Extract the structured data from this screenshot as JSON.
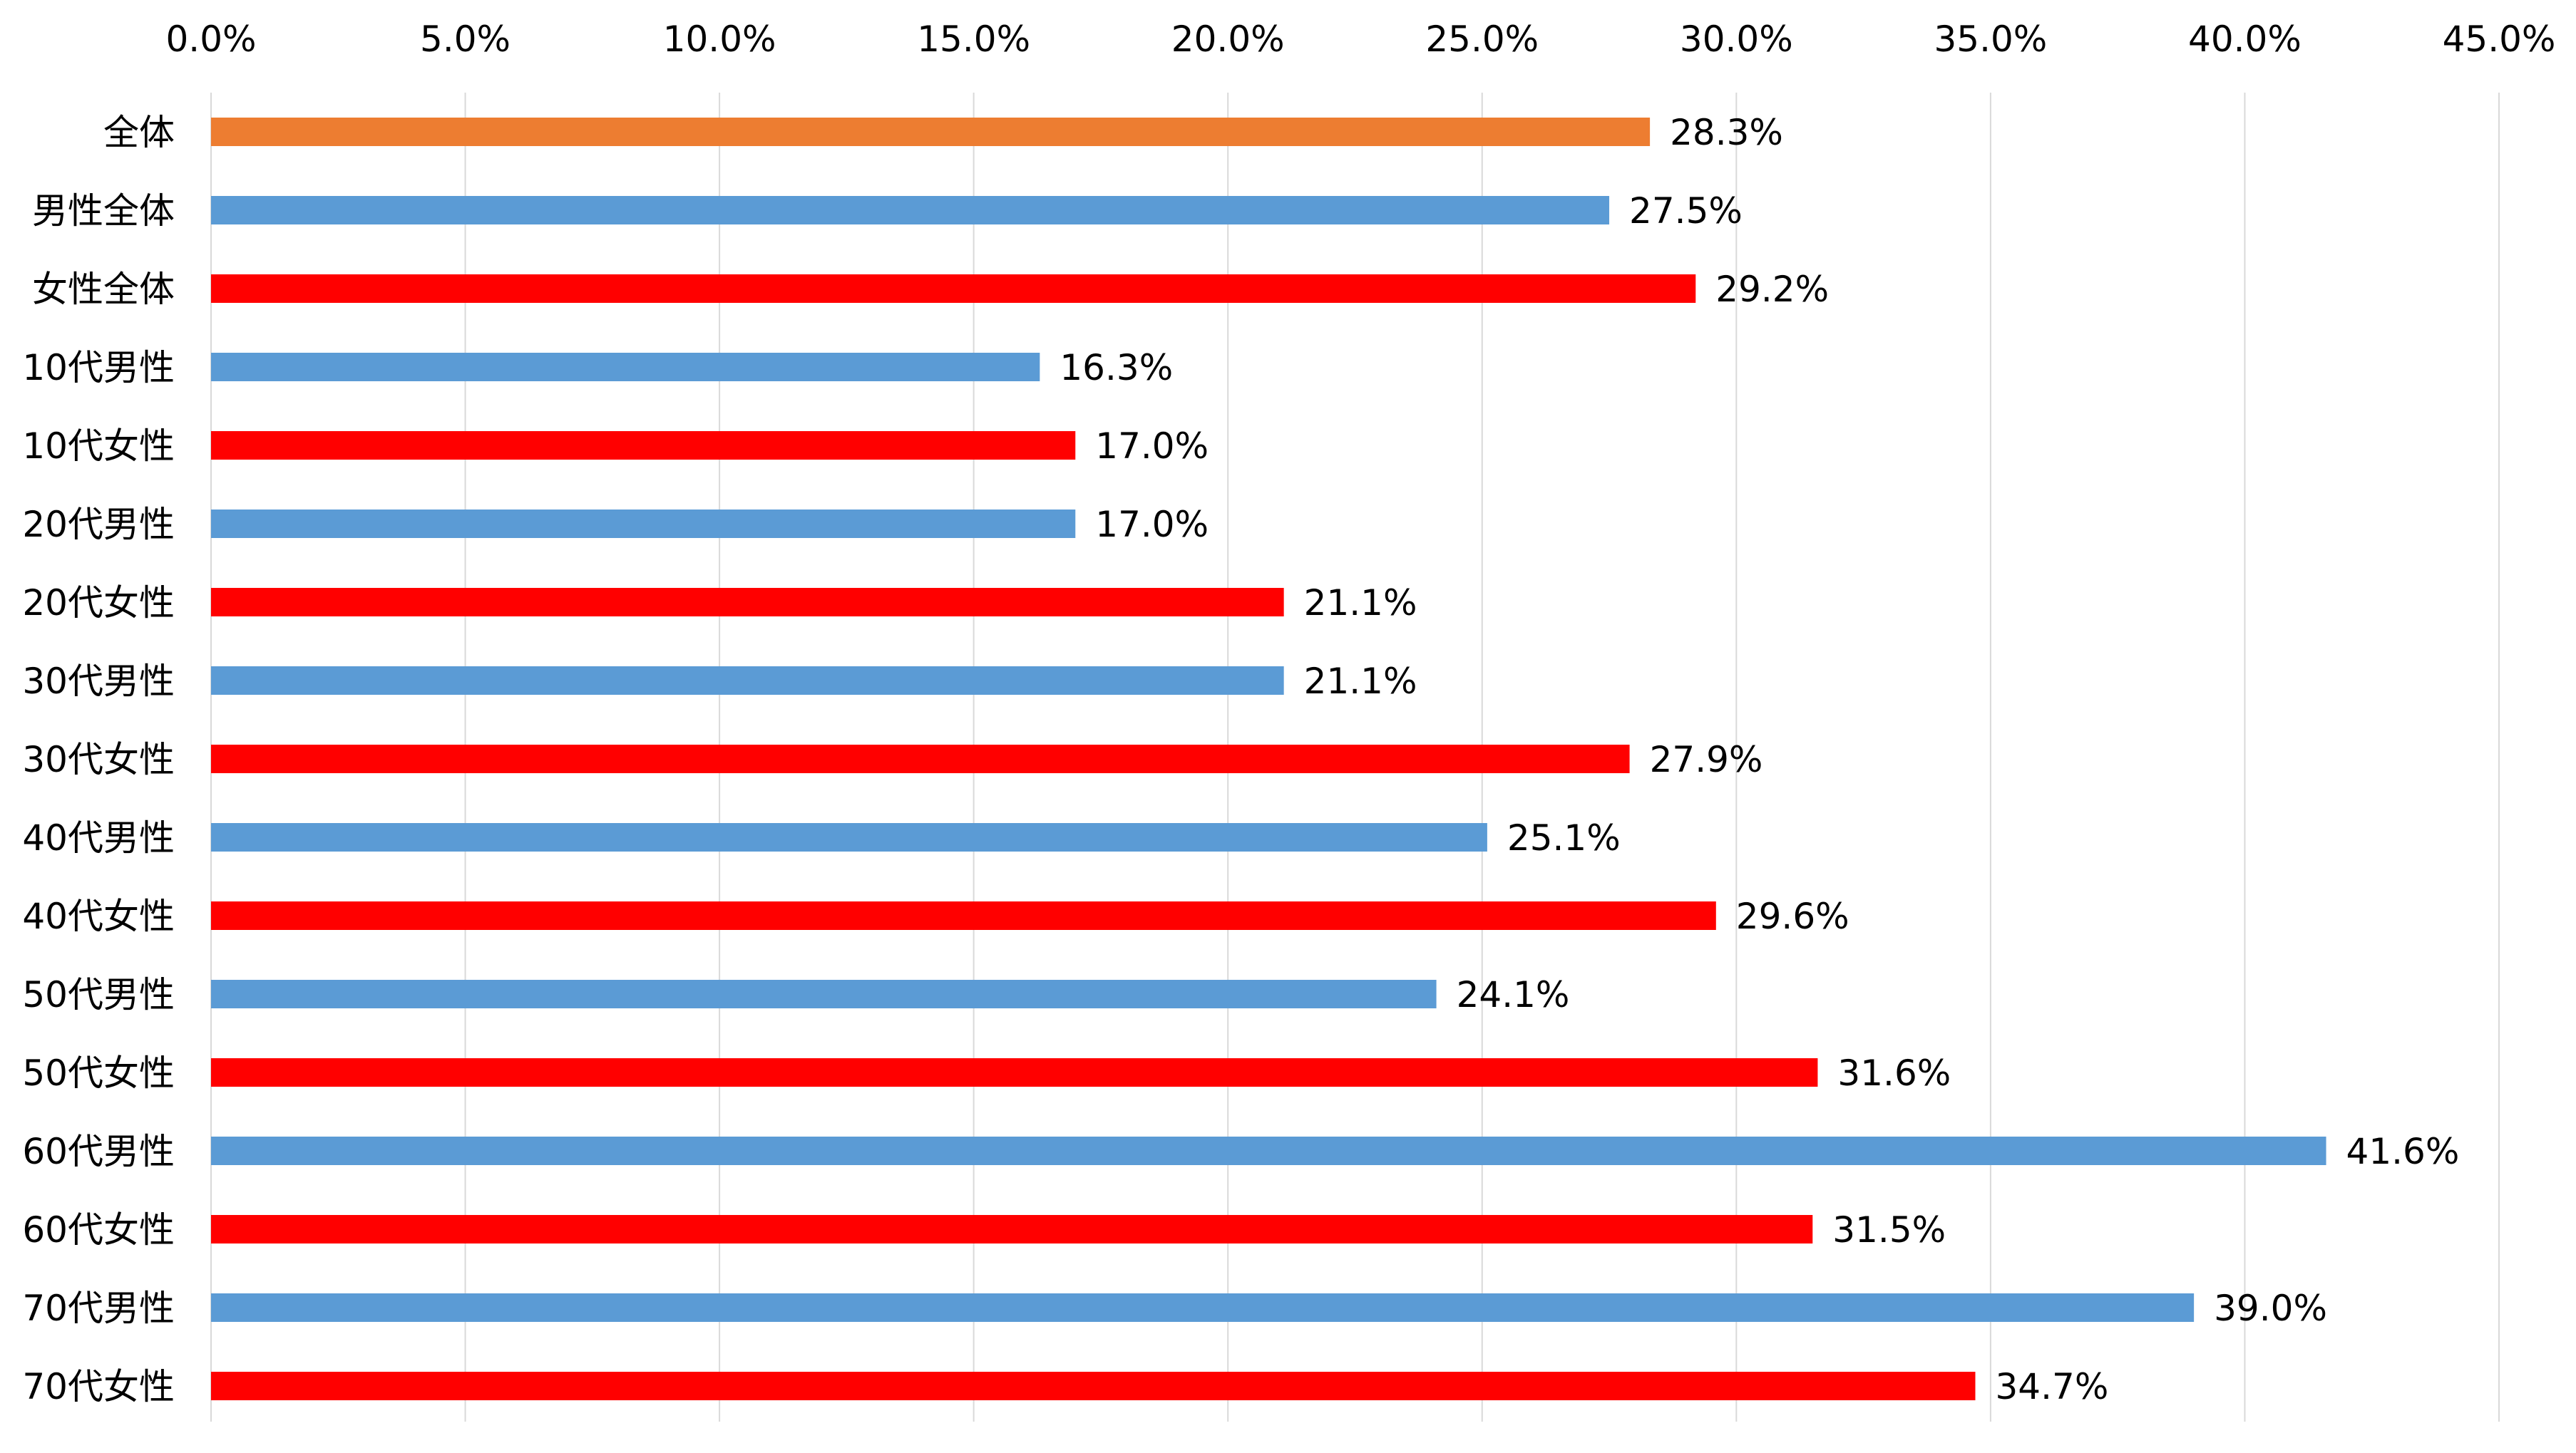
{
  "chart_data": {
    "type": "bar",
    "orientation": "horizontal",
    "title": "",
    "xlabel": "",
    "ylabel": "",
    "xlim": [
      0,
      45
    ],
    "x_ticks": [
      0,
      5,
      10,
      15,
      20,
      25,
      30,
      35,
      40,
      45
    ],
    "x_tick_labels": [
      "0.0%",
      "5.0%",
      "10.0%",
      "15.0%",
      "20.0%",
      "25.0%",
      "30.0%",
      "35.0%",
      "40.0%",
      "45.0%"
    ],
    "x_axis_position": "top",
    "grid": "vertical",
    "legend": "none",
    "categories": [
      "全体",
      "男性全体",
      "女性全体",
      "10代男性",
      "10代女性",
      "20代男性",
      "20代女性",
      "30代男性",
      "30代女性",
      "40代男性",
      "40代女性",
      "50代男性",
      "50代女性",
      "60代男性",
      "60代女性",
      "70代男性",
      "70代女性"
    ],
    "values": [
      28.3,
      27.5,
      29.2,
      16.3,
      17.0,
      17.0,
      21.1,
      21.1,
      27.9,
      25.1,
      29.6,
      24.1,
      31.6,
      41.6,
      31.5,
      39.0,
      34.7
    ],
    "value_labels": [
      "28.3%",
      "27.5%",
      "29.2%",
      "16.3%",
      "17.0%",
      "17.0%",
      "21.1%",
      "21.1%",
      "27.9%",
      "25.1%",
      "29.6%",
      "24.1%",
      "31.6%",
      "41.6%",
      "31.5%",
      "39.0%",
      "34.7%"
    ],
    "bar_colors": [
      "#ED7D31",
      "#5B9BD5",
      "#FF0000",
      "#5B9BD5",
      "#FF0000",
      "#5B9BD5",
      "#FF0000",
      "#5B9BD5",
      "#FF0000",
      "#5B9BD5",
      "#FF0000",
      "#5B9BD5",
      "#FF0000",
      "#5B9BD5",
      "#FF0000",
      "#5B9BD5",
      "#FF0000"
    ],
    "colors": {
      "overall": "#ED7D31",
      "male": "#5B9BD5",
      "female": "#FF0000",
      "gridline": "#D9D9D9"
    }
  }
}
